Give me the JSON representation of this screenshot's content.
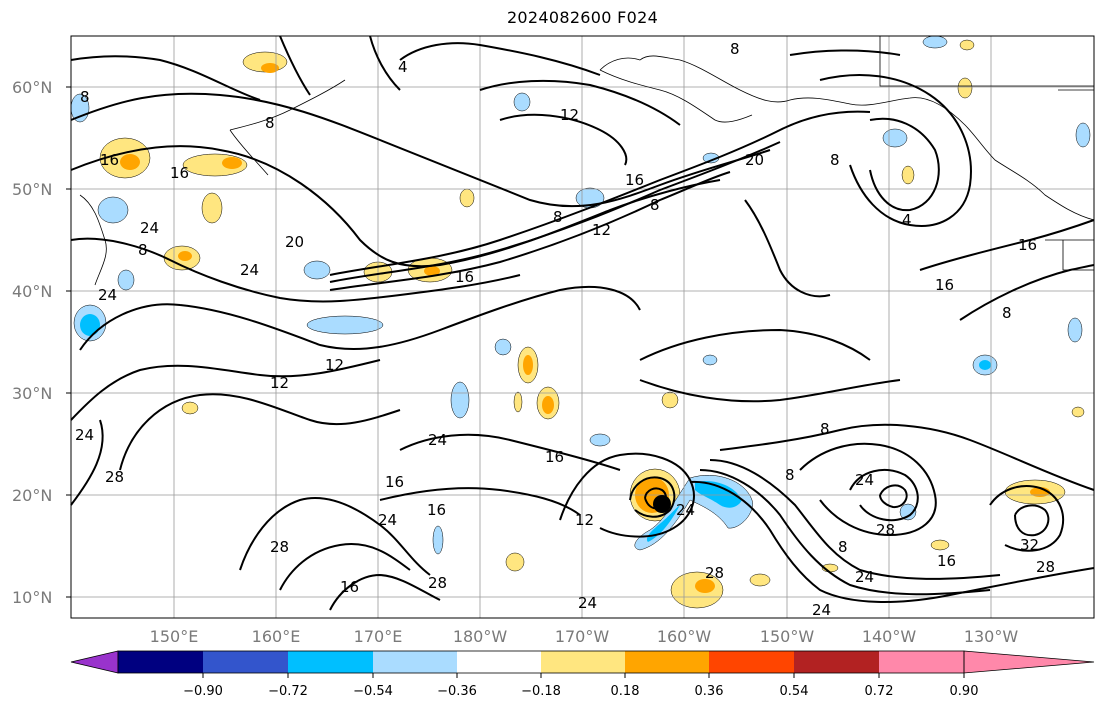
{
  "title": "2024082600 F024",
  "map": {
    "lat_labels": [
      "60°N",
      "50°N",
      "40°N",
      "30°N",
      "20°N",
      "10°N"
    ],
    "lon_labels": [
      "150°E",
      "160°E",
      "170°E",
      "180°W",
      "170°W",
      "160°W",
      "150°W",
      "140°W",
      "130°W"
    ],
    "contour_labels": [
      "8",
      "12",
      "16",
      "20",
      "24",
      "28",
      "4",
      "32"
    ],
    "grid": true
  },
  "colorbar": {
    "tick_labels": [
      "−0.90",
      "−0.72",
      "−0.54",
      "−0.36",
      "−0.18",
      "0.18",
      "0.36",
      "0.54",
      "0.72",
      "0.90"
    ],
    "colors": [
      "#9933cc",
      "#000080",
      "#3355cc",
      "#00bfff",
      "#aadcff",
      "#ffffff",
      "#ffe680",
      "#ffa500",
      "#ff4500",
      "#b22222",
      "#ff88aa"
    ]
  }
}
